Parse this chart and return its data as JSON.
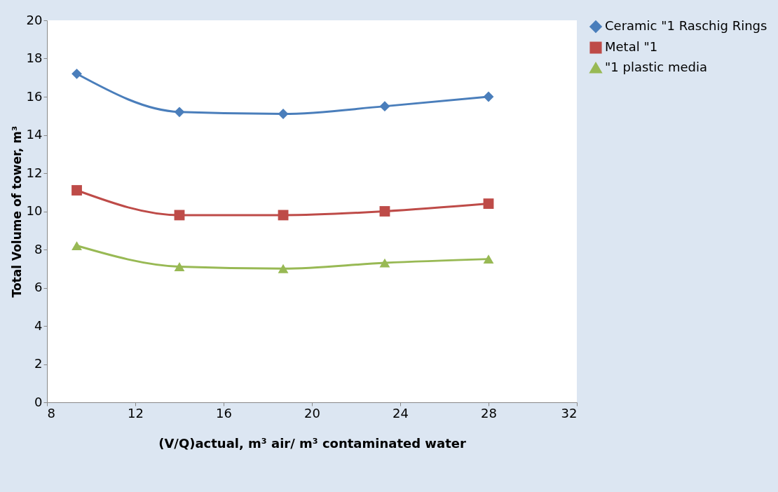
{
  "chart_data": {
    "type": "line",
    "xlabel": "(V/Q)actual, m³ air/ m³ contaminated water",
    "ylabel": "Total Volume of tower, m³",
    "x": [
      9.35,
      14,
      18.7,
      23.3,
      28
    ],
    "series": [
      {
        "name": "Ceramic \"1 Raschig Rings",
        "color": "#4a7ebb",
        "marker": "diamond",
        "values": [
          17.2,
          15.2,
          15.1,
          15.5,
          16.0
        ]
      },
      {
        "name": "Metal \"1",
        "color": "#be4b48",
        "marker": "square",
        "values": [
          11.1,
          9.8,
          9.8,
          10.0,
          10.4
        ]
      },
      {
        "name": "\"1 plastic media",
        "color": "#98b954",
        "marker": "triangle",
        "values": [
          8.2,
          7.1,
          7.0,
          7.3,
          7.5
        ]
      }
    ],
    "xlim": [
      8,
      32
    ],
    "xticks": [
      8,
      12,
      16,
      20,
      24,
      28,
      32
    ],
    "ylim": [
      0,
      20
    ],
    "yticks": [
      0,
      2,
      4,
      6,
      8,
      10,
      12,
      14,
      16,
      18,
      20
    ],
    "grid": false,
    "legend": "right",
    "line_style": "solid"
  }
}
